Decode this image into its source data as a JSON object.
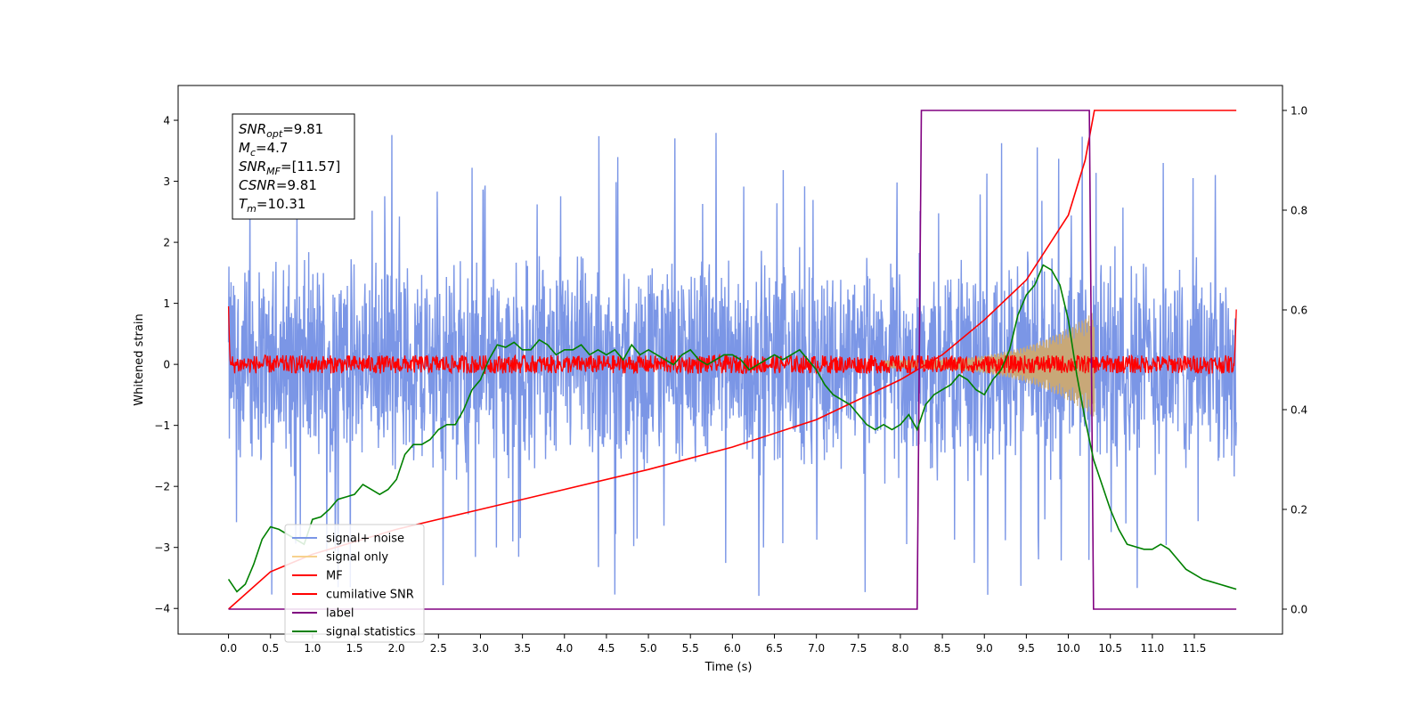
{
  "chart_data": {
    "type": "line",
    "title": "",
    "xlabel": "Time (s)",
    "ylabel": "Whitened strain",
    "xlim": [
      -0.6,
      12.55
    ],
    "ylim": [
      -4.42,
      4.57
    ],
    "y2lim": [
      -0.05,
      1.05
    ],
    "x_ticks": [
      "0.0",
      "0.5",
      "1.0",
      "1.5",
      "2.0",
      "2.5",
      "3.0",
      "3.5",
      "4.0",
      "4.5",
      "5.0",
      "5.5",
      "6.0",
      "6.5",
      "7.0",
      "7.5",
      "8.0",
      "8.5",
      "9.0",
      "9.5",
      "10.0",
      "10.5",
      "11.0",
      "11.5"
    ],
    "y_ticks": [
      "−4",
      "−3",
      "−2",
      "−1",
      "0",
      "1",
      "2",
      "3",
      "4"
    ],
    "y2_ticks": [
      "0.0",
      "0.2",
      "0.4",
      "0.6",
      "0.8",
      "1.0"
    ],
    "grid": false,
    "legend_position": "lower-left",
    "legend": [
      {
        "label": "signal+ noise",
        "color": "#7b96e6"
      },
      {
        "label": "signal only",
        "color": "#f7d28e"
      },
      {
        "label": "MF",
        "color": "#ff0000"
      },
      {
        "label": "cumilative SNR",
        "color": "#ff0000"
      },
      {
        "label": "label",
        "color": "#800080"
      },
      {
        "label": "signal statistics",
        "color": "#008000"
      }
    ],
    "annotation": [
      {
        "main": "SNR",
        "sub": "opt",
        "rest": "=9.81"
      },
      {
        "main": "M",
        "sub": "c",
        "rest": "=4.7"
      },
      {
        "main": "SNR",
        "sub": "MF",
        "rest": "=[11.57]"
      },
      {
        "main": "CSNR",
        "sub": "",
        "rest": "=9.81"
      },
      {
        "main": "T",
        "sub": "m",
        "rest": "=10.31"
      }
    ],
    "series": [
      {
        "name": "signal+ noise",
        "axis": "left",
        "x_range": [
          0.0,
          12.0
        ],
        "description_level": "noise amplitude ~±2, spikes up to ±3.8"
      },
      {
        "name": "signal only",
        "axis": "left",
        "chirp_start": 7.8,
        "chirp_end": 10.31,
        "peak_amplitude": 0.8
      },
      {
        "name": "MF",
        "axis": "left",
        "x_range": [
          0.0,
          12.0
        ],
        "noise_amplitude": 0.15
      },
      {
        "name": "cumilative SNR",
        "axis": "right",
        "x": [
          0.0,
          0.5,
          1.0,
          2.0,
          3.0,
          4.0,
          5.0,
          6.0,
          7.0,
          8.0,
          8.5,
          9.0,
          9.5,
          10.0,
          10.2,
          10.31,
          12.0
        ],
        "y": [
          0.0,
          0.075,
          0.11,
          0.16,
          0.2,
          0.24,
          0.28,
          0.325,
          0.38,
          0.46,
          0.51,
          0.58,
          0.66,
          0.79,
          0.9,
          1.0,
          1.0
        ]
      },
      {
        "name": "label",
        "axis": "right",
        "x": [
          0.0,
          8.2,
          8.25,
          10.25,
          10.3,
          12.0
        ],
        "y": [
          0,
          0,
          1,
          1,
          0,
          0
        ]
      },
      {
        "name": "signal statistics",
        "axis": "right",
        "x": [
          0.0,
          0.1,
          0.2,
          0.3,
          0.4,
          0.5,
          0.6,
          0.7,
          0.8,
          0.9,
          1.0,
          1.1,
          1.2,
          1.3,
          1.4,
          1.5,
          1.6,
          1.7,
          1.8,
          1.9,
          2.0,
          2.1,
          2.2,
          2.3,
          2.4,
          2.5,
          2.6,
          2.7,
          2.8,
          2.9,
          3.0,
          3.1,
          3.2,
          3.3,
          3.4,
          3.5,
          3.6,
          3.7,
          3.8,
          3.9,
          4.0,
          4.1,
          4.2,
          4.3,
          4.4,
          4.5,
          4.6,
          4.7,
          4.8,
          4.9,
          5.0,
          5.1,
          5.2,
          5.3,
          5.4,
          5.5,
          5.6,
          5.7,
          5.8,
          5.9,
          6.0,
          6.1,
          6.2,
          6.3,
          6.4,
          6.5,
          6.6,
          6.7,
          6.8,
          6.9,
          7.0,
          7.1,
          7.2,
          7.3,
          7.4,
          7.5,
          7.6,
          7.7,
          7.8,
          7.9,
          8.0,
          8.1,
          8.2,
          8.3,
          8.4,
          8.5,
          8.6,
          8.7,
          8.8,
          8.9,
          9.0,
          9.1,
          9.2,
          9.3,
          9.4,
          9.5,
          9.6,
          9.7,
          9.8,
          9.9,
          10.0,
          10.1,
          10.2,
          10.3,
          10.4,
          10.5,
          10.6,
          10.7,
          10.8,
          10.9,
          11.0,
          11.1,
          11.2,
          11.3,
          11.4,
          11.5,
          11.6,
          11.7,
          11.8,
          11.9,
          12.0
        ],
        "y": [
          0.06,
          0.035,
          0.05,
          0.09,
          0.14,
          0.165,
          0.16,
          0.15,
          0.14,
          0.13,
          0.18,
          0.185,
          0.2,
          0.22,
          0.225,
          0.23,
          0.25,
          0.24,
          0.23,
          0.24,
          0.26,
          0.31,
          0.33,
          0.33,
          0.34,
          0.36,
          0.37,
          0.37,
          0.4,
          0.44,
          0.46,
          0.5,
          0.53,
          0.525,
          0.535,
          0.52,
          0.52,
          0.54,
          0.53,
          0.51,
          0.52,
          0.52,
          0.53,
          0.51,
          0.52,
          0.51,
          0.52,
          0.5,
          0.53,
          0.51,
          0.52,
          0.51,
          0.5,
          0.49,
          0.51,
          0.52,
          0.5,
          0.49,
          0.5,
          0.51,
          0.51,
          0.5,
          0.48,
          0.49,
          0.5,
          0.51,
          0.5,
          0.51,
          0.52,
          0.5,
          0.48,
          0.45,
          0.43,
          0.42,
          0.41,
          0.39,
          0.37,
          0.36,
          0.37,
          0.36,
          0.37,
          0.39,
          0.36,
          0.41,
          0.43,
          0.44,
          0.45,
          0.47,
          0.46,
          0.44,
          0.43,
          0.46,
          0.48,
          0.52,
          0.59,
          0.63,
          0.65,
          0.69,
          0.68,
          0.65,
          0.58,
          0.47,
          0.38,
          0.3,
          0.25,
          0.2,
          0.16,
          0.13,
          0.125,
          0.12,
          0.12,
          0.13,
          0.12,
          0.1,
          0.08,
          0.07,
          0.06,
          0.055,
          0.05,
          0.045,
          0.04
        ]
      }
    ]
  }
}
